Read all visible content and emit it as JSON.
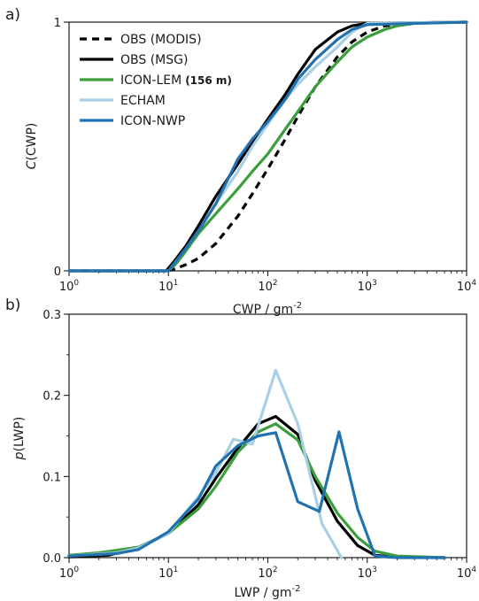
{
  "colors": {
    "obs_modis": "#000000",
    "obs_msg": "#000000",
    "icon_lem": "#3a9e3a",
    "echam": "#a8cfe3",
    "icon_nwp": "#2272b0"
  },
  "chart_data": [
    {
      "type": "line",
      "panel_label": "a)",
      "xlabel": "CWP / gm",
      "xlabel_exp": "-2",
      "ylabel_italic": "C",
      "ylabel_rest": "(CWP)",
      "xscale": "log",
      "xlim": [
        1,
        10000
      ],
      "ylim": [
        0,
        1
      ],
      "x_ticks": [
        {
          "base": "10",
          "exp": "0",
          "value": 1
        },
        {
          "base": "10",
          "exp": "1",
          "value": 10
        },
        {
          "base": "10",
          "exp": "2",
          "value": 100
        },
        {
          "base": "10",
          "exp": "3",
          "value": 1000
        },
        {
          "base": "10",
          "exp": "4",
          "value": 10000
        }
      ],
      "y_ticks": [
        {
          "label": "0",
          "value": 0
        },
        {
          "label": "1",
          "value": 1
        }
      ],
      "legend_position": "top-left",
      "grid": false,
      "series": [
        {
          "name": "OBS (MODIS)",
          "color_key": "obs_modis",
          "dash": "dashed",
          "points": [
            [
              1,
              0
            ],
            [
              10,
              0
            ],
            [
              12,
              0.01
            ],
            [
              15,
              0.025
            ],
            [
              20,
              0.05
            ],
            [
              30,
              0.11
            ],
            [
              50,
              0.22
            ],
            [
              70,
              0.31
            ],
            [
              100,
              0.41
            ],
            [
              150,
              0.53
            ],
            [
              200,
              0.62
            ],
            [
              300,
              0.74
            ],
            [
              500,
              0.86
            ],
            [
              700,
              0.92
            ],
            [
              1000,
              0.96
            ],
            [
              1500,
              0.985
            ],
            [
              3000,
              0.997
            ],
            [
              10000,
              1
            ]
          ]
        },
        {
          "name": "OBS (MSG)",
          "color_key": "obs_msg",
          "dash": "solid",
          "points": [
            [
              1,
              0
            ],
            [
              9.5,
              0
            ],
            [
              11,
              0.03
            ],
            [
              15,
              0.1
            ],
            [
              20,
              0.18
            ],
            [
              30,
              0.3
            ],
            [
              50,
              0.43
            ],
            [
              70,
              0.52
            ],
            [
              100,
              0.61
            ],
            [
              150,
              0.71
            ],
            [
              200,
              0.79
            ],
            [
              300,
              0.89
            ],
            [
              500,
              0.96
            ],
            [
              700,
              0.985
            ],
            [
              1000,
              0.995
            ],
            [
              10000,
              1
            ]
          ]
        },
        {
          "name": "ICON-LEM",
          "name_suffix": "(156 m)",
          "color_key": "icon_lem",
          "dash": "solid",
          "points": [
            [
              1,
              0
            ],
            [
              10,
              0
            ],
            [
              12,
              0.03
            ],
            [
              15,
              0.08
            ],
            [
              20,
              0.15
            ],
            [
              30,
              0.23
            ],
            [
              50,
              0.33
            ],
            [
              70,
              0.4
            ],
            [
              100,
              0.47
            ],
            [
              150,
              0.57
            ],
            [
              200,
              0.64
            ],
            [
              300,
              0.74
            ],
            [
              500,
              0.84
            ],
            [
              700,
              0.9
            ],
            [
              1000,
              0.94
            ],
            [
              1500,
              0.97
            ],
            [
              2000,
              0.985
            ],
            [
              3000,
              0.995
            ],
            [
              10000,
              1
            ]
          ]
        },
        {
          "name": "ECHAM",
          "color_key": "echam",
          "dash": "solid",
          "points": [
            [
              1,
              0
            ],
            [
              10,
              0
            ],
            [
              12,
              0.04
            ],
            [
              15,
              0.09
            ],
            [
              20,
              0.16
            ],
            [
              30,
              0.27
            ],
            [
              50,
              0.4
            ],
            [
              70,
              0.5
            ],
            [
              100,
              0.59
            ],
            [
              150,
              0.69
            ],
            [
              200,
              0.75
            ],
            [
              300,
              0.82
            ],
            [
              500,
              0.9
            ],
            [
              700,
              0.96
            ],
            [
              1000,
              0.995
            ],
            [
              10000,
              1
            ]
          ]
        },
        {
          "name": "ICON-NWP",
          "color_key": "icon_nwp",
          "dash": "solid",
          "points": [
            [
              1,
              0
            ],
            [
              10,
              0
            ],
            [
              12,
              0.04
            ],
            [
              15,
              0.09
            ],
            [
              20,
              0.16
            ],
            [
              30,
              0.27
            ],
            [
              50,
              0.45
            ],
            [
              70,
              0.53
            ],
            [
              100,
              0.6
            ],
            [
              150,
              0.69
            ],
            [
              200,
              0.77
            ],
            [
              300,
              0.85
            ],
            [
              500,
              0.93
            ],
            [
              700,
              0.97
            ],
            [
              1000,
              0.99
            ],
            [
              10000,
              1
            ]
          ]
        }
      ]
    },
    {
      "type": "line",
      "panel_label": "b)",
      "xlabel": "LWP / gm",
      "xlabel_exp": "-2",
      "ylabel_italic": "p",
      "ylabel_rest": "(LWP)",
      "xscale": "log",
      "xlim": [
        1,
        10000
      ],
      "ylim": [
        0,
        0.3
      ],
      "x_ticks": [
        {
          "base": "10",
          "exp": "0",
          "value": 1
        },
        {
          "base": "10",
          "exp": "1",
          "value": 10
        },
        {
          "base": "10",
          "exp": "2",
          "value": 100
        },
        {
          "base": "10",
          "exp": "3",
          "value": 1000
        },
        {
          "base": "10",
          "exp": "4",
          "value": 10000
        }
      ],
      "y_ticks": [
        {
          "label": "0.0",
          "value": 0
        },
        {
          "label": "0.1",
          "value": 0.1
        },
        {
          "label": "0.2",
          "value": 0.2
        },
        {
          "label": "0.3",
          "value": 0.3
        }
      ],
      "grid": false,
      "series": [
        {
          "name": "OBS (MSG)",
          "color_key": "obs_msg",
          "dash": "solid",
          "points": [
            [
              1,
              0.001
            ],
            [
              2.5,
              0.003
            ],
            [
              5,
              0.012
            ],
            [
              10,
              0.03
            ],
            [
              20,
              0.065
            ],
            [
              30,
              0.098
            ],
            [
              50,
              0.135
            ],
            [
              80,
              0.165
            ],
            [
              120,
              0.174
            ],
            [
              200,
              0.152
            ],
            [
              300,
              0.095
            ],
            [
              500,
              0.045
            ],
            [
              800,
              0.015
            ],
            [
              1200,
              0.003
            ],
            [
              2000,
              0.0005
            ],
            [
              6000,
              0
            ]
          ]
        },
        {
          "name": "ICON-LEM",
          "color_key": "icon_lem",
          "dash": "solid",
          "points": [
            [
              1,
              0.003
            ],
            [
              2,
              0.006
            ],
            [
              5,
              0.013
            ],
            [
              10,
              0.03
            ],
            [
              20,
              0.06
            ],
            [
              30,
              0.088
            ],
            [
              50,
              0.13
            ],
            [
              80,
              0.155
            ],
            [
              120,
              0.165
            ],
            [
              200,
              0.145
            ],
            [
              300,
              0.1
            ],
            [
              500,
              0.055
            ],
            [
              800,
              0.025
            ],
            [
              1200,
              0.008
            ],
            [
              2000,
              0.002
            ],
            [
              6000,
              0
            ]
          ]
        },
        {
          "name": "ECHAM",
          "color_key": "echam",
          "dash": "solid",
          "points": [
            [
              1,
              0.002
            ],
            [
              3,
              0.006
            ],
            [
              5,
              0.012
            ],
            [
              10,
              0.03
            ],
            [
              20,
              0.075
            ],
            [
              30,
              0.105
            ],
            [
              45,
              0.146
            ],
            [
              70,
              0.14
            ],
            [
              120,
              0.231
            ],
            [
              200,
              0.165
            ],
            [
              350,
              0.042
            ],
            [
              550,
              0
            ]
          ]
        },
        {
          "name": "ICON-NWP",
          "color_key": "icon_nwp",
          "dash": "solid",
          "points": [
            [
              1,
              0.002
            ],
            [
              3,
              0.005
            ],
            [
              5,
              0.01
            ],
            [
              10,
              0.032
            ],
            [
              20,
              0.072
            ],
            [
              30,
              0.113
            ],
            [
              50,
              0.138
            ],
            [
              80,
              0.15
            ],
            [
              120,
              0.154
            ],
            [
              200,
              0.069
            ],
            [
              330,
              0.057
            ],
            [
              520,
              0.155
            ],
            [
              800,
              0.06
            ],
            [
              1200,
              0.002
            ],
            [
              2000,
              0
            ],
            [
              6000,
              0
            ]
          ]
        }
      ]
    }
  ]
}
